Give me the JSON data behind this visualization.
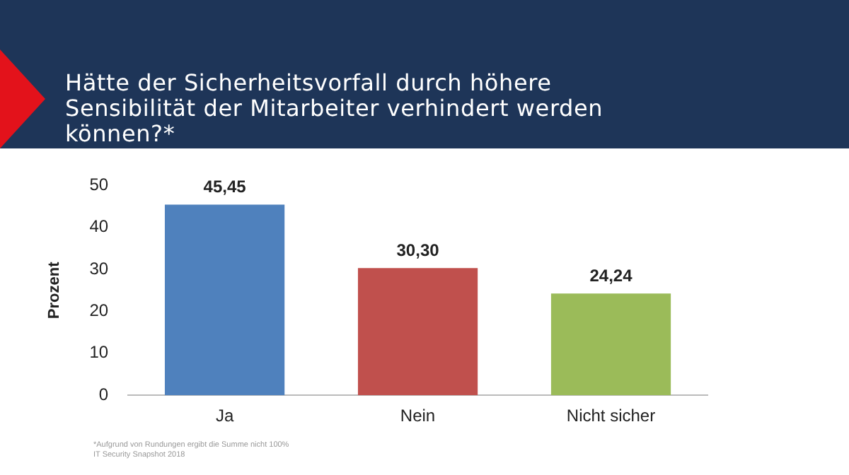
{
  "chart_data": {
    "type": "bar",
    "title": "Hätte der Sicherheitsvorfall durch höhere Sensibilität der Mitarbeiter verhindert werden können?*",
    "ylabel": "Prozent",
    "categories": [
      "Ja",
      "Nein",
      "Nicht sicher"
    ],
    "values": [
      45.45,
      30.3,
      24.24
    ],
    "value_labels": [
      "45,45",
      "30,30",
      "24,24"
    ],
    "colors": [
      "#4f81bd",
      "#c0504d",
      "#9bbb59"
    ],
    "ylim": [
      0,
      50
    ],
    "yticks": [
      0,
      10,
      20,
      30,
      40,
      50
    ],
    "grid": false,
    "legend": false,
    "annotations": [
      "*Aufgrund von Rundungen ergibt die Summe nicht 100%",
      "IT Security Snapshot 2018"
    ]
  }
}
